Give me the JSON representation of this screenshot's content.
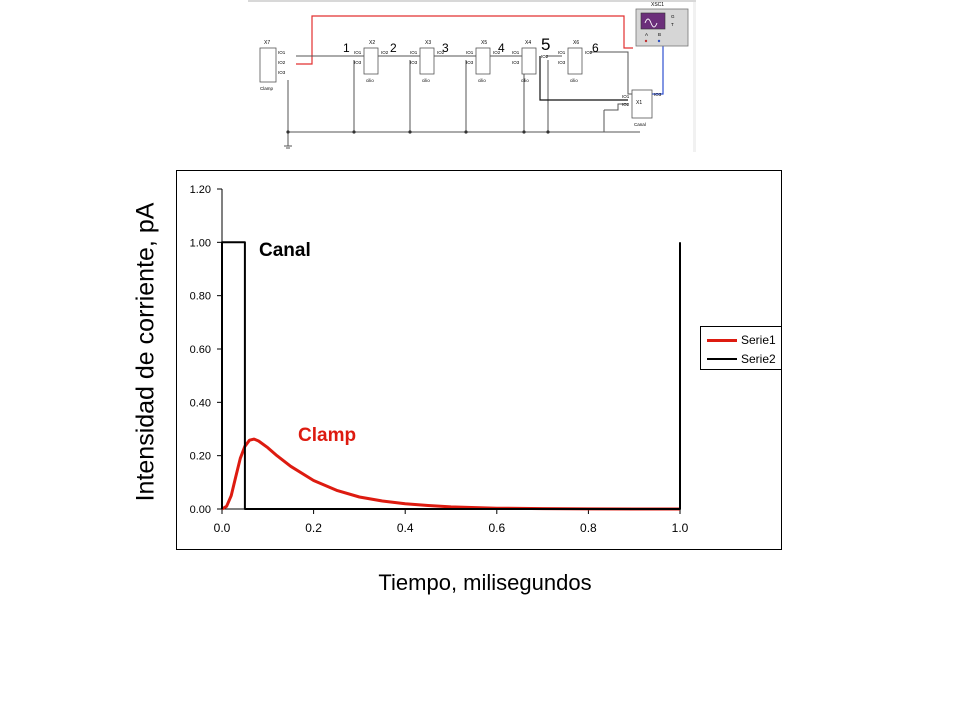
{
  "schematic": {
    "probe_numbers": [
      "1",
      "2",
      "3",
      "4",
      "5",
      "6"
    ],
    "clamp_block": {
      "ref": "X7",
      "pins": [
        "IO1",
        "IO2",
        "IO3"
      ],
      "name": "Clamp"
    },
    "cilio_blocks": [
      {
        "ref": "X2",
        "pins": [
          "IO1",
          "IO2",
          "IO3"
        ],
        "name": "cilio"
      },
      {
        "ref": "X3",
        "pins": [
          "IO1",
          "IO2",
          "IO3"
        ],
        "name": "cilio"
      },
      {
        "ref": "X5",
        "pins": [
          "IO1",
          "IO2",
          "IO3"
        ],
        "name": "cilio"
      },
      {
        "ref": "X4",
        "pins": [
          "IO1",
          "IO2",
          "IO3"
        ],
        "name": "cilio"
      },
      {
        "ref": "X6",
        "pins": [
          "IO1",
          "IO2",
          "IO3"
        ],
        "name": "cilio"
      }
    ],
    "canal_block": {
      "ref": "X1",
      "pins": [
        "IO1",
        "IO2",
        "IO3"
      ],
      "name": "Canal"
    },
    "scope": {
      "ref": "XSC1",
      "pins": [
        "G",
        "T",
        "A",
        "B"
      ]
    }
  },
  "chart_data": {
    "type": "line",
    "title": "",
    "xlabel": "Tiempo, milisegundos",
    "ylabel": "Intensidad de corriente, pA",
    "xlim": [
      0,
      1.0
    ],
    "ylim": [
      0,
      1.2
    ],
    "x_ticks": [
      "0.0",
      "0.2",
      "0.4",
      "0.6",
      "0.8",
      "1.0"
    ],
    "y_ticks": [
      "0.00",
      "0.20",
      "0.40",
      "0.60",
      "0.80",
      "1.00",
      "1.20"
    ],
    "grid": false,
    "legend_position": "right",
    "series": [
      {
        "name": "Serie1",
        "color": "#dd1b10",
        "x": [
          0.0,
          0.01,
          0.02,
          0.03,
          0.04,
          0.05,
          0.06,
          0.07,
          0.08,
          0.1,
          0.12,
          0.15,
          0.2,
          0.25,
          0.3,
          0.35,
          0.4,
          0.45,
          0.5,
          0.6,
          0.7,
          0.8,
          1.0
        ],
        "y": [
          0.0,
          0.01,
          0.05,
          0.12,
          0.19,
          0.235,
          0.258,
          0.262,
          0.255,
          0.23,
          0.2,
          0.16,
          0.107,
          0.07,
          0.045,
          0.03,
          0.02,
          0.013,
          0.008,
          0.003,
          0.0015,
          0.0005,
          0.0
        ]
      },
      {
        "name": "Serie2",
        "color": "#000000",
        "x": [
          0.0,
          0.0,
          0.05,
          0.05,
          0.05,
          1.0,
          1.0
        ],
        "y": [
          0.0,
          1.0,
          1.0,
          0.0,
          0.0,
          0.0,
          1.0
        ]
      }
    ],
    "annotations": [
      {
        "text": "Canal",
        "color": "#000000"
      },
      {
        "text": "Clamp",
        "color": "#dd1b10"
      }
    ]
  }
}
